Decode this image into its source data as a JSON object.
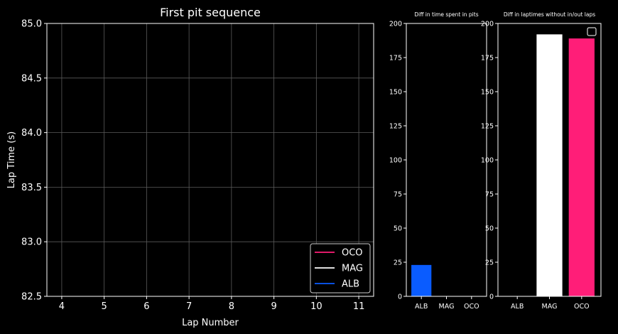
{
  "chart_data": [
    {
      "type": "line",
      "title": "First pit sequence",
      "xlabel": "Lap Number",
      "ylabel": "Lap Time (s)",
      "xlim": [
        3.65,
        11.35
      ],
      "ylim": [
        82.5,
        85.0
      ],
      "xticks": [
        4,
        5,
        6,
        7,
        8,
        9,
        10,
        11
      ],
      "yticks": [
        82.5,
        83.0,
        83.5,
        84.0,
        84.5,
        85.0
      ],
      "ytick_labels": [
        "82.5",
        "83.0",
        "83.5",
        "84.0",
        "84.5",
        "85.0"
      ],
      "grid": true,
      "legend_position": "lower-right",
      "series": [
        {
          "name": "OCO",
          "color": "#ff1e78",
          "x": [],
          "y": []
        },
        {
          "name": "MAG",
          "color": "#ffffff",
          "x": [],
          "y": []
        },
        {
          "name": "ALB",
          "color": "#0a5cff",
          "x": [],
          "y": []
        }
      ]
    },
    {
      "type": "bar",
      "title": "Diff in time spent in pits",
      "categories": [
        "ALB",
        "MAG",
        "OCO"
      ],
      "values": [
        23,
        0,
        0
      ],
      "colors": [
        "#0a5cff",
        "#ffffff",
        "#ff1e78"
      ],
      "ylim": [
        0,
        200
      ],
      "yticks": [
        0,
        25,
        50,
        75,
        100,
        125,
        150,
        175,
        200
      ]
    },
    {
      "type": "bar",
      "title": "Diff in laptimes without in/out laps",
      "categories": [
        "ALB",
        "MAG",
        "OCO"
      ],
      "values": [
        0,
        192,
        189
      ],
      "colors": [
        "#0a5cff",
        "#ffffff",
        "#ff1e78"
      ],
      "ylim": [
        0,
        200
      ],
      "yticks": [
        0,
        25,
        50,
        75,
        100,
        125,
        150,
        175,
        200
      ],
      "legend": "empty"
    }
  ],
  "colors": {
    "background": "#000000",
    "axis": "#ffffff",
    "grid": "#5a5a5a"
  }
}
